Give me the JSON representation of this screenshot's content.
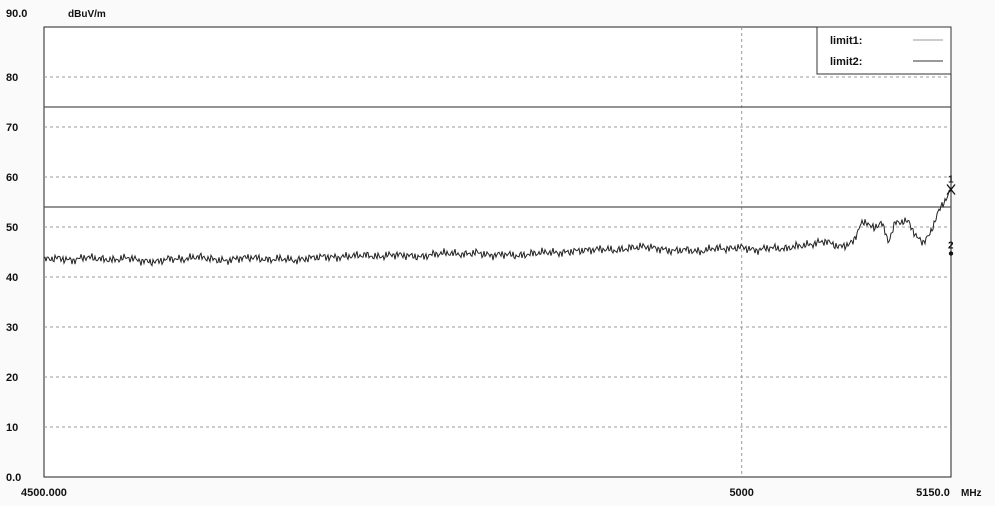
{
  "chart_data": {
    "type": "line",
    "ylabel": "dBuV/m",
    "xunit": "MHz",
    "xlim": [
      4500,
      5150
    ],
    "ylim": [
      0,
      90
    ],
    "y_ticks": [
      0,
      10,
      20,
      30,
      40,
      50,
      60,
      70,
      80,
      90
    ],
    "y_tick_labels": [
      "0.0",
      "10",
      "20",
      "30",
      "40",
      "50",
      "60",
      "70",
      "80",
      "90.0"
    ],
    "x_ticks": [
      4500,
      5000,
      5150
    ],
    "x_tick_labels": [
      "4500.000",
      "5000",
      "5150.0"
    ],
    "grid": "dashed",
    "legend_position": "top-right",
    "legend": [
      {
        "label": "limit1:",
        "color": "#9a9a9a"
      },
      {
        "label": "limit2:",
        "color": "#333333"
      }
    ],
    "limit_lines": [
      {
        "name": "limit1:",
        "value": 74,
        "color": "#555555"
      },
      {
        "name": "limit2:",
        "value": 54,
        "color": "#555555"
      }
    ],
    "markers": [
      {
        "label": "1",
        "x": 5150,
        "y": 57.5
      },
      {
        "label": "2",
        "x": 5150,
        "y": 45.5
      }
    ],
    "series": [
      {
        "color": "#222222",
        "x": [
          4500,
          4510,
          4520,
          4530,
          4540,
          4550,
          4560,
          4570,
          4580,
          4590,
          4600,
          4610,
          4620,
          4630,
          4640,
          4650,
          4660,
          4670,
          4680,
          4690,
          4700,
          4710,
          4720,
          4730,
          4740,
          4750,
          4760,
          4770,
          4780,
          4790,
          4800,
          4810,
          4820,
          4830,
          4840,
          4850,
          4860,
          4870,
          4880,
          4890,
          4900,
          4910,
          4920,
          4930,
          4940,
          4950,
          4960,
          4970,
          4980,
          4990,
          5000,
          5010,
          5020,
          5030,
          5040,
          5050,
          5055,
          5060,
          5065,
          5070,
          5075,
          5080,
          5085,
          5090,
          5095,
          5100,
          5105,
          5110,
          5115,
          5120,
          5125,
          5130,
          5135,
          5140,
          5145,
          5150
        ],
        "values": [
          43.5,
          43.8,
          43.3,
          44.0,
          43.6,
          43.4,
          43.9,
          43.2,
          43.0,
          43.7,
          43.5,
          44.1,
          43.6,
          43.2,
          43.8,
          43.9,
          43.4,
          43.7,
          43.3,
          43.8,
          44.1,
          43.9,
          44.2,
          44.4,
          44.0,
          44.5,
          44.3,
          44.0,
          44.6,
          44.8,
          44.5,
          44.9,
          44.3,
          44.6,
          44.2,
          44.7,
          45.0,
          44.8,
          45.2,
          45.4,
          45.6,
          45.3,
          45.8,
          46.1,
          45.7,
          45.2,
          45.5,
          45.0,
          45.8,
          45.6,
          46.0,
          45.3,
          45.9,
          45.6,
          46.2,
          46.5,
          46.9,
          47.2,
          46.6,
          46.0,
          46.4,
          47.0,
          50.5,
          51.0,
          49.5,
          51.2,
          47.0,
          50.8,
          51.1,
          51.0,
          48.0,
          47.0,
          48.5,
          52.5,
          55.0,
          57.5
        ]
      }
    ]
  }
}
